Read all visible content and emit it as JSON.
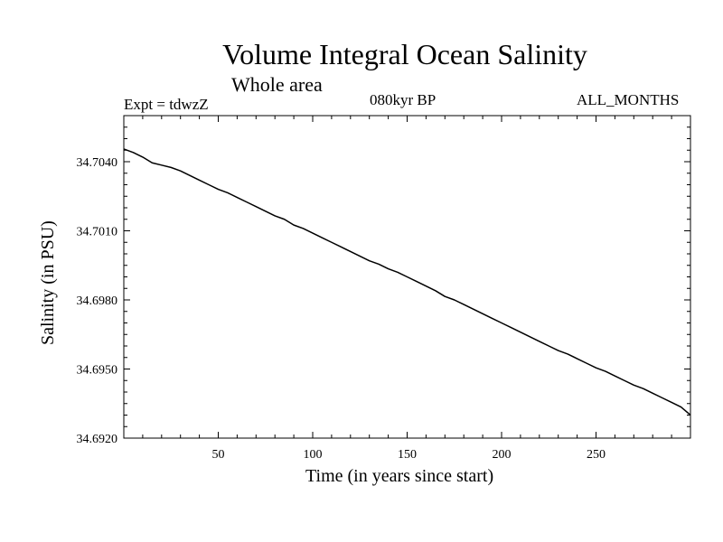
{
  "chart_data": {
    "type": "line",
    "title": "Volume Integral Ocean Salinity",
    "subtitle": "Whole area",
    "annotations": {
      "experiment": "Expt = tdwzZ",
      "period": "080kyr BP",
      "season": "ALL_MONTHS"
    },
    "xlabel": "Time (in years since start)",
    "ylabel": "Salinity (in PSU)",
    "xlim": [
      0,
      300
    ],
    "ylim": [
      34.692,
      34.706
    ],
    "xticks": [
      50,
      100,
      150,
      200,
      250
    ],
    "yticks": [
      "34.6920",
      "34.6950",
      "34.6980",
      "34.7010",
      "34.7040"
    ],
    "grid": false,
    "series": [
      {
        "color": "#000000",
        "x": [
          0,
          5,
          10,
          15,
          20,
          25,
          30,
          35,
          40,
          45,
          50,
          55,
          60,
          65,
          70,
          75,
          80,
          85,
          90,
          95,
          100,
          105,
          110,
          115,
          120,
          125,
          130,
          135,
          140,
          145,
          150,
          155,
          160,
          165,
          170,
          175,
          180,
          185,
          190,
          195,
          200,
          205,
          210,
          215,
          220,
          225,
          230,
          235,
          240,
          245,
          250,
          255,
          260,
          265,
          270,
          275,
          280,
          285,
          290,
          295,
          300
        ],
        "values": [
          34.70455,
          34.7044,
          34.7042,
          34.70395,
          34.70385,
          34.70375,
          34.7036,
          34.7034,
          34.7032,
          34.703,
          34.7028,
          34.70265,
          34.70245,
          34.70225,
          34.70205,
          34.70185,
          34.70165,
          34.7015,
          34.70125,
          34.7011,
          34.7009,
          34.7007,
          34.7005,
          34.7003,
          34.7001,
          34.6999,
          34.6997,
          34.69955,
          34.69935,
          34.6992,
          34.699,
          34.6988,
          34.6986,
          34.6984,
          34.69815,
          34.698,
          34.6978,
          34.6976,
          34.6974,
          34.6972,
          34.697,
          34.6968,
          34.6966,
          34.6964,
          34.6962,
          34.696,
          34.6958,
          34.69565,
          34.69545,
          34.69525,
          34.69505,
          34.6949,
          34.6947,
          34.6945,
          34.6943,
          34.69415,
          34.69395,
          34.69375,
          34.69355,
          34.69335,
          34.693
        ]
      }
    ]
  }
}
